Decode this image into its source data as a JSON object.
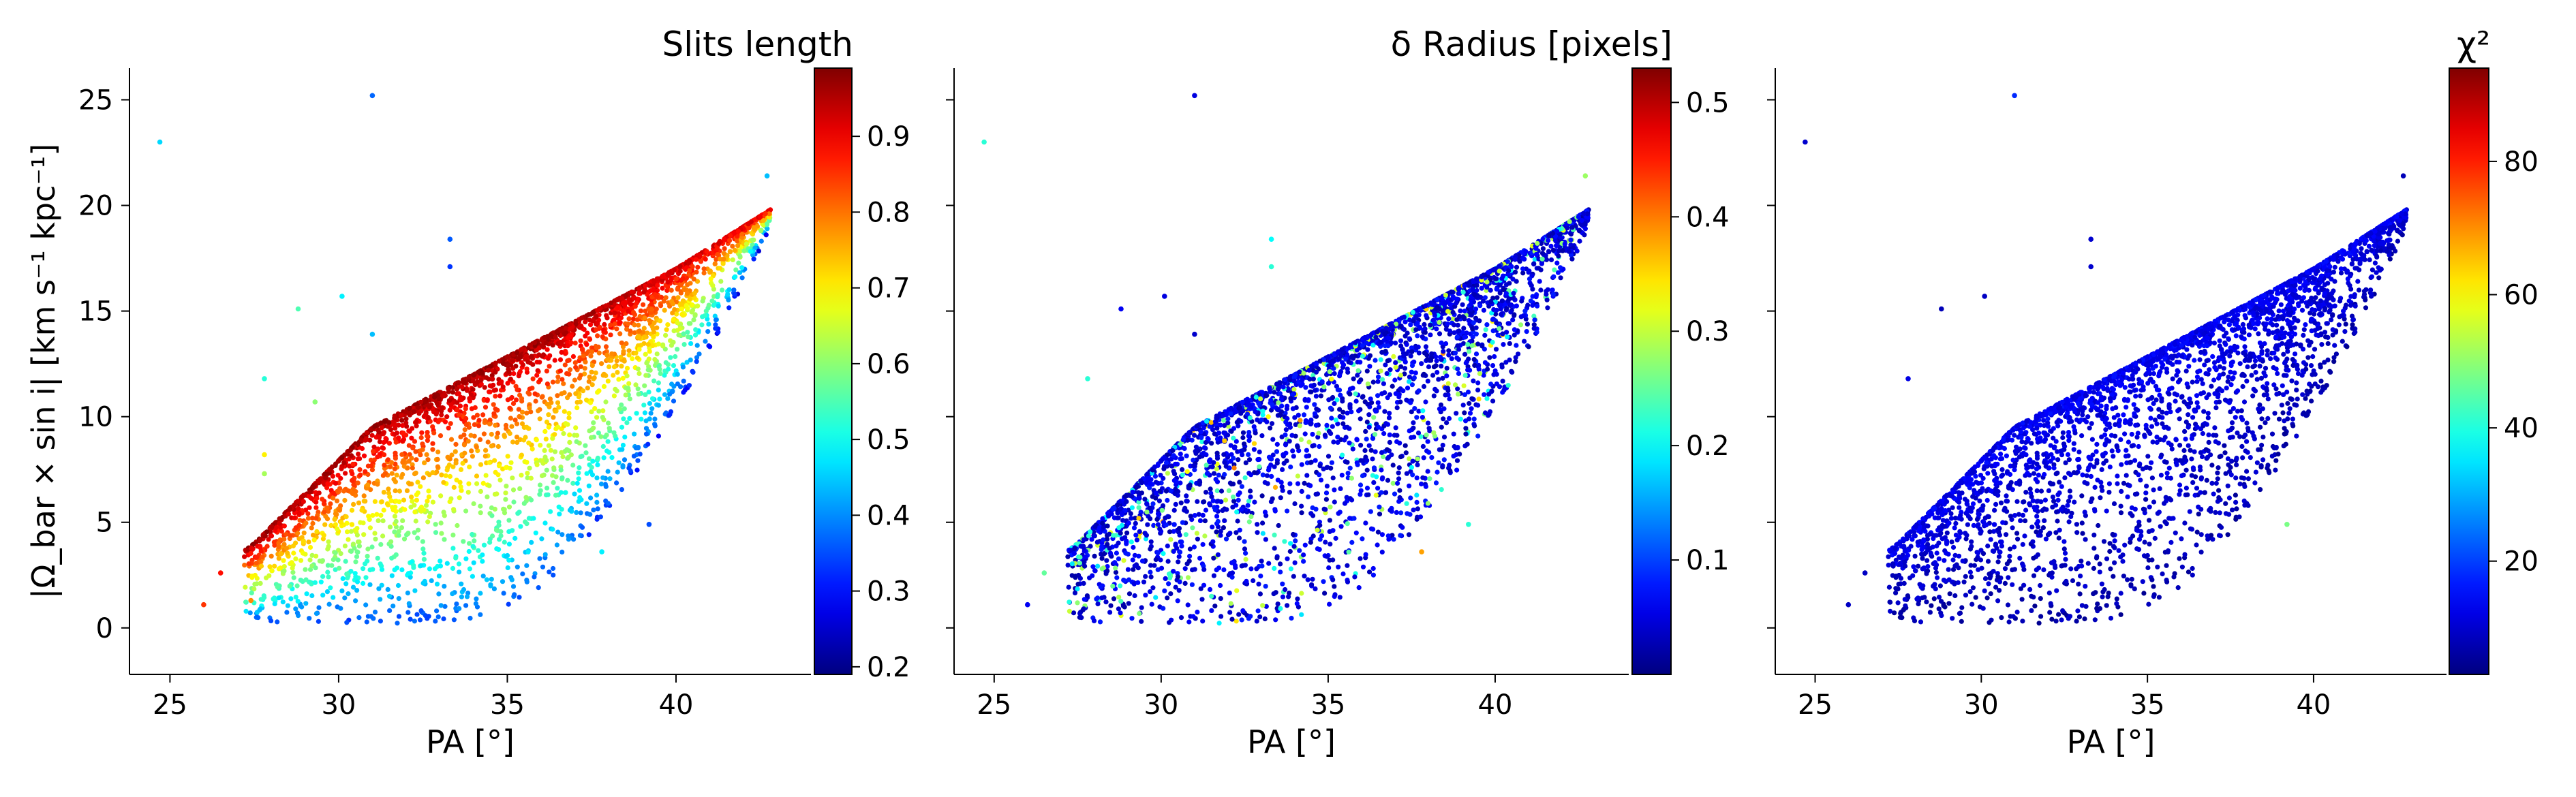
{
  "chart_data": [
    {
      "type": "scatter",
      "id": "panel-1",
      "xlabel": "PA [°]",
      "ylabel": "|Ω_bar × sin i|  [km s⁻¹ kpc⁻¹]",
      "xlim": [
        23.8,
        44.0
      ],
      "ylim": [
        -2.2,
        26.5
      ],
      "xticks": [
        25,
        30,
        35,
        40
      ],
      "yticks": [
        0,
        5,
        10,
        15,
        20,
        25
      ],
      "colorbar": {
        "title": "Slits length",
        "colormap": "jet",
        "range": [
          0.19,
          0.99
        ],
        "ticks": [
          0.2,
          0.3,
          0.4,
          0.5,
          0.6,
          0.7,
          0.8,
          0.9
        ]
      },
      "color_mode": "slit",
      "n_points": 3200,
      "outliers": [
        {
          "x": 24.7,
          "y": 23.0,
          "c": 0.46
        },
        {
          "x": 31.0,
          "y": 25.2,
          "c": 0.37
        },
        {
          "x": 28.8,
          "y": 15.1,
          "c": 0.55
        },
        {
          "x": 30.1,
          "y": 15.7,
          "c": 0.48
        },
        {
          "x": 31.0,
          "y": 13.9,
          "c": 0.44
        },
        {
          "x": 33.3,
          "y": 18.4,
          "c": 0.36
        },
        {
          "x": 33.3,
          "y": 17.1,
          "c": 0.33
        },
        {
          "x": 27.8,
          "y": 11.8,
          "c": 0.52
        },
        {
          "x": 29.3,
          "y": 10.7,
          "c": 0.6
        },
        {
          "x": 27.8,
          "y": 8.2,
          "c": 0.7
        },
        {
          "x": 27.8,
          "y": 7.3,
          "c": 0.62
        },
        {
          "x": 39.2,
          "y": 4.9,
          "c": 0.35
        },
        {
          "x": 37.8,
          "y": 3.6,
          "c": 0.48
        },
        {
          "x": 26.5,
          "y": 2.6,
          "c": 0.88
        },
        {
          "x": 26.0,
          "y": 1.1,
          "c": 0.85
        },
        {
          "x": 27.4,
          "y": 1.3,
          "c": 0.78
        },
        {
          "x": 42.7,
          "y": 21.4,
          "c": 0.44
        }
      ]
    },
    {
      "type": "scatter",
      "id": "panel-2",
      "xlabel": "PA [°]",
      "xlim": [
        23.8,
        44.0
      ],
      "ylim": [
        -2.2,
        26.5
      ],
      "xticks": [
        25,
        30,
        35,
        40
      ],
      "yticks": [
        0,
        5,
        10,
        15,
        20,
        25
      ],
      "colorbar": {
        "title": "δ Radius [pixels]",
        "colormap": "jet",
        "range": [
          0.0,
          0.53
        ],
        "ticks": [
          0.1,
          0.2,
          0.3,
          0.4,
          0.5
        ]
      },
      "color_mode": "radius",
      "n_points": 3200,
      "outliers": [
        {
          "x": 24.7,
          "y": 23.0,
          "c": 0.22
        },
        {
          "x": 31.0,
          "y": 25.2,
          "c": 0.05
        },
        {
          "x": 28.8,
          "y": 15.1,
          "c": 0.06
        },
        {
          "x": 30.1,
          "y": 15.7,
          "c": 0.05
        },
        {
          "x": 31.0,
          "y": 13.9,
          "c": 0.04
        },
        {
          "x": 33.3,
          "y": 18.4,
          "c": 0.2
        },
        {
          "x": 33.3,
          "y": 17.1,
          "c": 0.22
        },
        {
          "x": 27.8,
          "y": 11.8,
          "c": 0.22
        },
        {
          "x": 39.2,
          "y": 4.9,
          "c": 0.22
        },
        {
          "x": 37.8,
          "y": 3.6,
          "c": 0.38
        },
        {
          "x": 26.5,
          "y": 2.6,
          "c": 0.25
        },
        {
          "x": 26.0,
          "y": 1.1,
          "c": 0.06
        },
        {
          "x": 42.7,
          "y": 21.4,
          "c": 0.28
        }
      ]
    },
    {
      "type": "scatter",
      "id": "panel-3",
      "xlabel": "PA [°]",
      "xlim": [
        23.8,
        44.0
      ],
      "ylim": [
        -2.2,
        26.5
      ],
      "xticks": [
        25,
        30,
        35,
        40
      ],
      "yticks": [
        0,
        5,
        10,
        15,
        20,
        25
      ],
      "colorbar": {
        "title": "χ²",
        "colormap": "jet",
        "range": [
          3,
          94
        ],
        "ticks": [
          20,
          40,
          60,
          80
        ]
      },
      "color_mode": "chi2",
      "n_points": 3200,
      "outliers": [
        {
          "x": 24.7,
          "y": 23.0,
          "c": 10
        },
        {
          "x": 31.0,
          "y": 25.2,
          "c": 18
        },
        {
          "x": 28.8,
          "y": 15.1,
          "c": 8
        },
        {
          "x": 30.1,
          "y": 15.7,
          "c": 9
        },
        {
          "x": 33.3,
          "y": 18.4,
          "c": 10
        },
        {
          "x": 33.3,
          "y": 17.1,
          "c": 10
        },
        {
          "x": 27.8,
          "y": 11.8,
          "c": 12
        },
        {
          "x": 39.2,
          "y": 4.9,
          "c": 48
        },
        {
          "x": 26.5,
          "y": 2.6,
          "c": 9
        },
        {
          "x": 26.0,
          "y": 1.1,
          "c": 9
        },
        {
          "x": 42.7,
          "y": 21.4,
          "c": 8
        }
      ]
    }
  ]
}
